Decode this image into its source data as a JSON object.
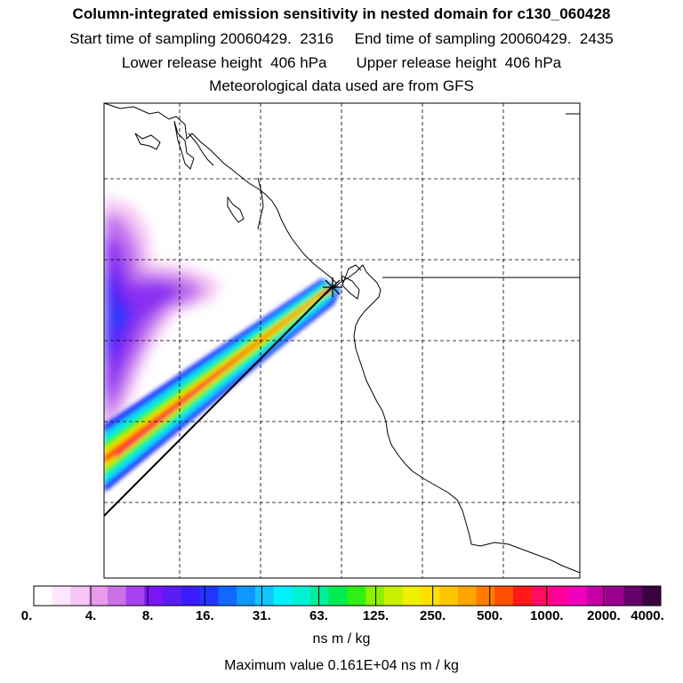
{
  "header": {
    "title": "Column-integrated emission sensitivity in nested domain for c130_060428",
    "line2": "Start time of sampling 20060429.  2316     End time of sampling 20060429.  2435",
    "line3": "Lower release height  406 hPa       Upper release height  406 hPa",
    "line4": "Meteorological data used are from GFS"
  },
  "legend": {
    "ticks": [
      "0.",
      "4.",
      "8.",
      "16.",
      "31.",
      "63.",
      "125.",
      "250.",
      "500.",
      "1000.",
      "2000.",
      "4000."
    ],
    "colors": [
      "#ffffff",
      "#ffe6ff",
      "#f7c6f7",
      "#e79be9",
      "#cc70e6",
      "#a740ef",
      "#7d14f5",
      "#5a1cf0",
      "#3c1cff",
      "#2036ff",
      "#1068ff",
      "#1096ff",
      "#14c4ff",
      "#00f2ff",
      "#00f2d6",
      "#00ed9a",
      "#00ea52",
      "#2ef014",
      "#8cf000",
      "#c8f000",
      "#eef200",
      "#ffe000",
      "#ffc400",
      "#ffa400",
      "#ff7c00",
      "#ff4e00",
      "#ff1a1a",
      "#ff0d64",
      "#ff009a",
      "#ef00bd",
      "#c600a6",
      "#98008d",
      "#66006a",
      "#3a0040"
    ],
    "units": "ns m / kg",
    "max_value_text": "Maximum value  0.161E+04 ns m / kg"
  },
  "map": {
    "release_marker": "star-marker",
    "grid_style": "dashed"
  }
}
